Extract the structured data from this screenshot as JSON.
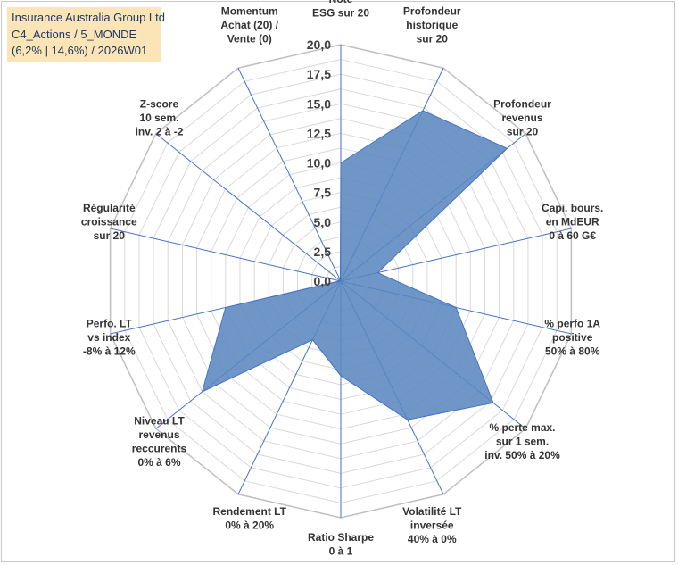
{
  "header": {
    "line1": "Insurance Australia Group Ltd",
    "line2": "C4_Actions / 5_MONDE",
    "line3": "(6,2% | 14,6%) / 2026W01"
  },
  "colors": {
    "fill": "#5b87bf",
    "stroke": "#4472c4",
    "grid": "#d9d9d9",
    "spoke": "#4472c4",
    "title_bg": "#fbe5b6"
  },
  "chart_data": {
    "type": "radar",
    "title": "Insurance Australia Group Ltd",
    "rmin": 0,
    "rmax": 20,
    "ticks": [
      "0,0",
      "2,5",
      "5,0",
      "7,5",
      "10,0",
      "12,5",
      "15,0",
      "17,5",
      "20,0"
    ],
    "categories": [
      {
        "label": [
          "Note",
          "ESG sur 20"
        ]
      },
      {
        "label": [
          "Profondeur",
          "historique",
          "sur 20"
        ]
      },
      {
        "label": [
          "Profondeur",
          "revenus",
          "sur 20"
        ]
      },
      {
        "label": [
          "Capi. bours.",
          "en MdEUR",
          "0 à 60 G€"
        ]
      },
      {
        "label": [
          "% perfo 1A",
          "positive",
          "50% à 80%"
        ]
      },
      {
        "label": [
          "% perte max.",
          "sur 1 sem.",
          "inv. 50% à 20%"
        ]
      },
      {
        "label": [
          "Volatilité LT",
          "inversée",
          "40% à 0%"
        ]
      },
      {
        "label": [
          "Ratio Sharpe",
          "0 à 1"
        ]
      },
      {
        "label": [
          "Rendement LT",
          "0% à 20%"
        ]
      },
      {
        "label": [
          "Niveau LT",
          "revenus",
          "reccurents",
          "0% à 6%"
        ]
      },
      {
        "label": [
          "Perfo. LT",
          "vs index",
          "-8% à 12%"
        ]
      },
      {
        "label": [
          "Régularité",
          "croissance",
          "sur 20"
        ]
      },
      {
        "label": [
          "Z-score",
          "10 sem.",
          "inv. 2 à -2"
        ]
      },
      {
        "label": [
          "Momentum",
          "Achat (20) /",
          "Vente (0)"
        ]
      }
    ],
    "series": [
      {
        "name": "Insurance Australia Group Ltd",
        "values": [
          10.0,
          16.0,
          18.0,
          3.2,
          10.0,
          16.5,
          13.0,
          8.0,
          5.5,
          15.0,
          10.0,
          0.1,
          0.1,
          0.1
        ]
      }
    ]
  }
}
